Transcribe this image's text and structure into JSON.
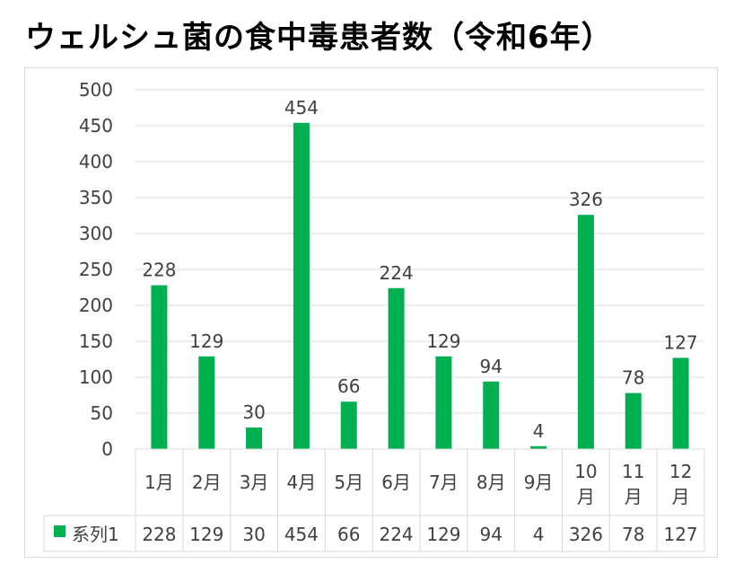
{
  "title": "ウェルシュ菌の食中毒患者数（令和6年）",
  "chart_data": {
    "type": "bar",
    "title": "ウェルシュ菌の食中毒患者数（令和6年）",
    "categories": [
      "1月",
      "2月",
      "3月",
      "4月",
      "5月",
      "6月",
      "7月",
      "8月",
      "9月",
      "10月",
      "11月",
      "12月"
    ],
    "series": [
      {
        "name": "系列1",
        "values": [
          228,
          129,
          30,
          454,
          66,
          224,
          129,
          94,
          4,
          326,
          78,
          127
        ],
        "color": "#00b050"
      }
    ],
    "ylim": [
      0,
      500
    ],
    "yticks": [
      0,
      50,
      100,
      150,
      200,
      250,
      300,
      350,
      400,
      450,
      500
    ],
    "grid": true,
    "data_labels": true,
    "data_table": true,
    "legend_in_table": true
  }
}
